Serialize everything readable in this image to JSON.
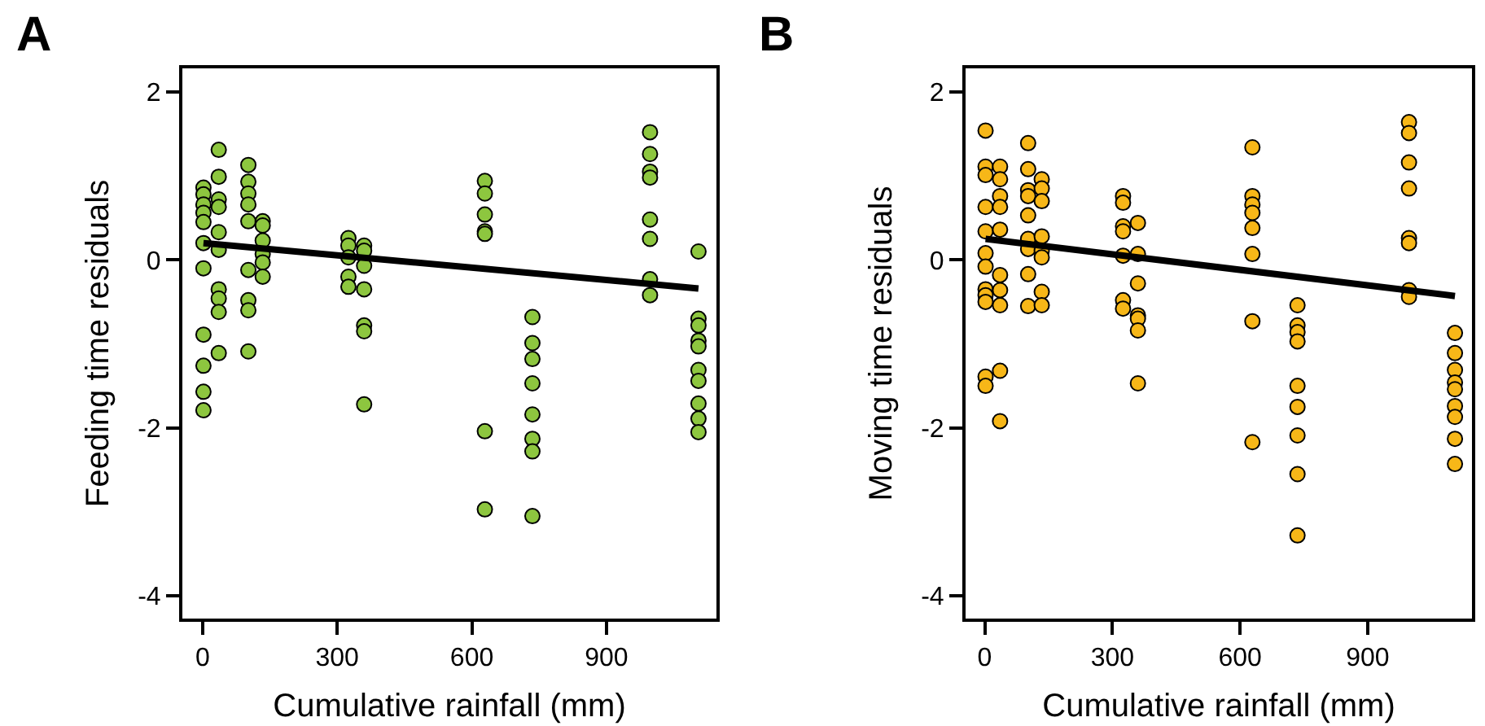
{
  "chart_data": [
    {
      "type": "scatter",
      "title": "A",
      "xlabel": "Cumulative rainfall (mm)",
      "ylabel": "Feeding time residuals",
      "xlim": [
        -45,
        1145
      ],
      "ylim": [
        -4.27,
        2.28
      ],
      "xticks": [
        0,
        300,
        600,
        900
      ],
      "yticks": [
        2,
        0,
        -2,
        -4
      ],
      "grid": false,
      "series": [
        {
          "marker": "circle",
          "color": "#8dc63f",
          "x": [
            2,
            2,
            2,
            2,
            2,
            2,
            2,
            2,
            2,
            2,
            2,
            36,
            36,
            36,
            36,
            36,
            36,
            36,
            36,
            36,
            36,
            102,
            102,
            102,
            102,
            102,
            102,
            102,
            102,
            102,
            134,
            134,
            134,
            134,
            134,
            134,
            325,
            325,
            325,
            325,
            325,
            360,
            360,
            360,
            360,
            360,
            360,
            360,
            629,
            629,
            629,
            629,
            629,
            629,
            629,
            735,
            735,
            735,
            735,
            735,
            735,
            735,
            735,
            997,
            997,
            997,
            997,
            997,
            997,
            997,
            997,
            1105,
            1105,
            1105,
            1105,
            1105,
            1105,
            1105,
            1105,
            1105,
            1105
          ],
          "values": [
            0.86,
            0.78,
            0.66,
            0.56,
            0.45,
            0.2,
            -0.1,
            -0.89,
            -1.26,
            -1.57,
            -1.79,
            1.31,
            0.99,
            0.72,
            0.63,
            0.33,
            0.12,
            -0.35,
            -0.46,
            -0.62,
            -1.11,
            1.13,
            0.93,
            0.79,
            0.66,
            0.46,
            -0.12,
            -0.48,
            -0.6,
            -1.09,
            0.46,
            0.41,
            0.23,
            0.07,
            -0.03,
            -0.2,
            0.26,
            0.17,
            0.03,
            -0.2,
            -0.32,
            0.17,
            0.11,
            -0.07,
            -0.35,
            -0.78,
            -0.85,
            -1.72,
            0.94,
            0.79,
            0.54,
            0.34,
            0.31,
            -2.04,
            -2.97,
            -0.68,
            -0.99,
            -1.18,
            -1.47,
            -1.84,
            -2.13,
            -2.28,
            -3.05,
            1.52,
            1.26,
            1.05,
            0.98,
            0.48,
            0.25,
            -0.23,
            -0.42,
            0.1,
            -0.7,
            -0.78,
            -0.96,
            -1.03,
            -1.31,
            -1.44,
            -1.71,
            -1.89,
            -2.05
          ]
        },
        {
          "type": "line",
          "marker": "none",
          "color": "#000000",
          "x": [
            2,
            1105
          ],
          "values": [
            0.2,
            -0.34
          ]
        }
      ]
    },
    {
      "type": "scatter",
      "title": "B",
      "xlabel": "Cumulative rainfall (mm)",
      "ylabel": "Moving time residuals",
      "xlim": [
        -45,
        1145
      ],
      "ylim": [
        -4.27,
        2.28
      ],
      "xticks": [
        0,
        300,
        600,
        900
      ],
      "yticks": [
        2,
        0,
        -2,
        -4
      ],
      "grid": false,
      "series": [
        {
          "marker": "circle",
          "color": "#f7b718",
          "x": [
            2,
            2,
            2,
            2,
            2,
            2,
            2,
            2,
            2,
            2,
            2,
            2,
            36,
            36,
            36,
            36,
            36,
            36,
            36,
            36,
            36,
            36,
            102,
            102,
            102,
            102,
            102,
            102,
            102,
            102,
            102,
            134,
            134,
            134,
            134,
            134,
            134,
            134,
            134,
            325,
            325,
            325,
            325,
            325,
            325,
            325,
            360,
            360,
            360,
            360,
            360,
            360,
            360,
            629,
            629,
            629,
            629,
            629,
            629,
            629,
            629,
            735,
            735,
            735,
            735,
            735,
            735,
            735,
            735,
            735,
            997,
            997,
            997,
            997,
            997,
            997,
            997,
            997,
            1105,
            1105,
            1105,
            1105,
            1105,
            1105,
            1105,
            1105,
            1105
          ],
          "values": [
            1.54,
            1.11,
            1.01,
            0.63,
            0.34,
            0.08,
            -0.08,
            -0.35,
            -0.42,
            -0.5,
            -1.39,
            -1.5,
            1.11,
            0.96,
            0.76,
            0.63,
            0.36,
            -0.18,
            -0.36,
            -0.54,
            -1.32,
            -1.92,
            1.39,
            1.08,
            0.83,
            0.76,
            0.53,
            0.25,
            0.13,
            -0.17,
            -0.55,
            0.96,
            0.85,
            0.7,
            0.28,
            0.11,
            0.03,
            -0.38,
            -0.54,
            0.76,
            0.68,
            0.4,
            0.34,
            0.05,
            -0.48,
            -0.58,
            0.44,
            0.07,
            -0.28,
            -0.66,
            -0.7,
            -0.84,
            -1.47,
            1.34,
            0.76,
            0.66,
            0.56,
            0.38,
            0.07,
            -0.73,
            -2.17,
            -0.54,
            -0.78,
            -0.86,
            -0.97,
            -1.5,
            -1.75,
            -2.09,
            -2.55,
            -3.28,
            1.64,
            1.51,
            1.16,
            0.85,
            0.26,
            0.2,
            -0.36,
            -0.44,
            -0.87,
            -1.11,
            -1.31,
            -1.46,
            -1.54,
            -1.74,
            -1.87,
            -2.13,
            -2.43
          ]
        },
        {
          "type": "line",
          "marker": "none",
          "color": "#000000",
          "x": [
            2,
            1105
          ],
          "values": [
            0.25,
            -0.43
          ]
        }
      ]
    }
  ]
}
